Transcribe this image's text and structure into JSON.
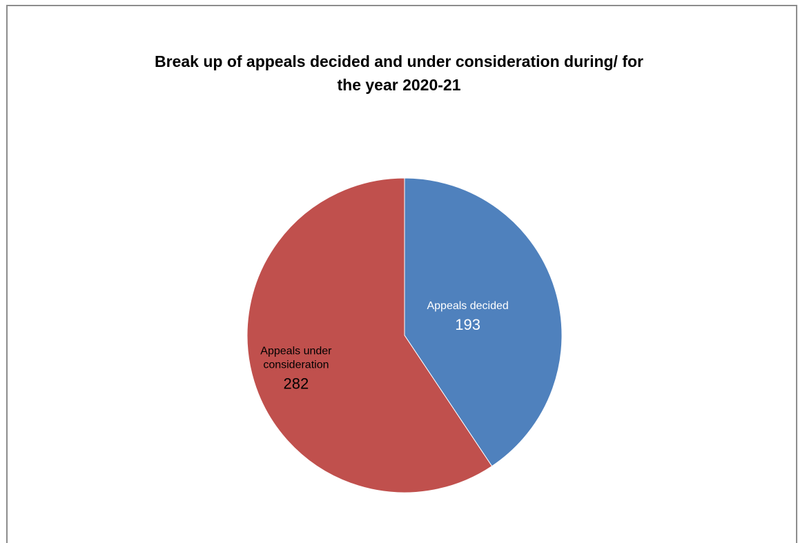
{
  "chart_data": {
    "type": "pie",
    "title_lines": [
      "Break up of appeals decided and under consideration during/ for",
      "the year 2020-21"
    ],
    "slices": [
      {
        "label_lines": [
          "Appeals decided"
        ],
        "value": 193,
        "color": "#4F81BD",
        "label_color": "#ffffff"
      },
      {
        "label_lines": [
          "Appeals under",
          "consideration"
        ],
        "value": 282,
        "color": "#C0504D",
        "label_color": "#000000"
      }
    ],
    "start_angle": "12 o'clock",
    "direction": "clockwise",
    "legend": "none"
  }
}
